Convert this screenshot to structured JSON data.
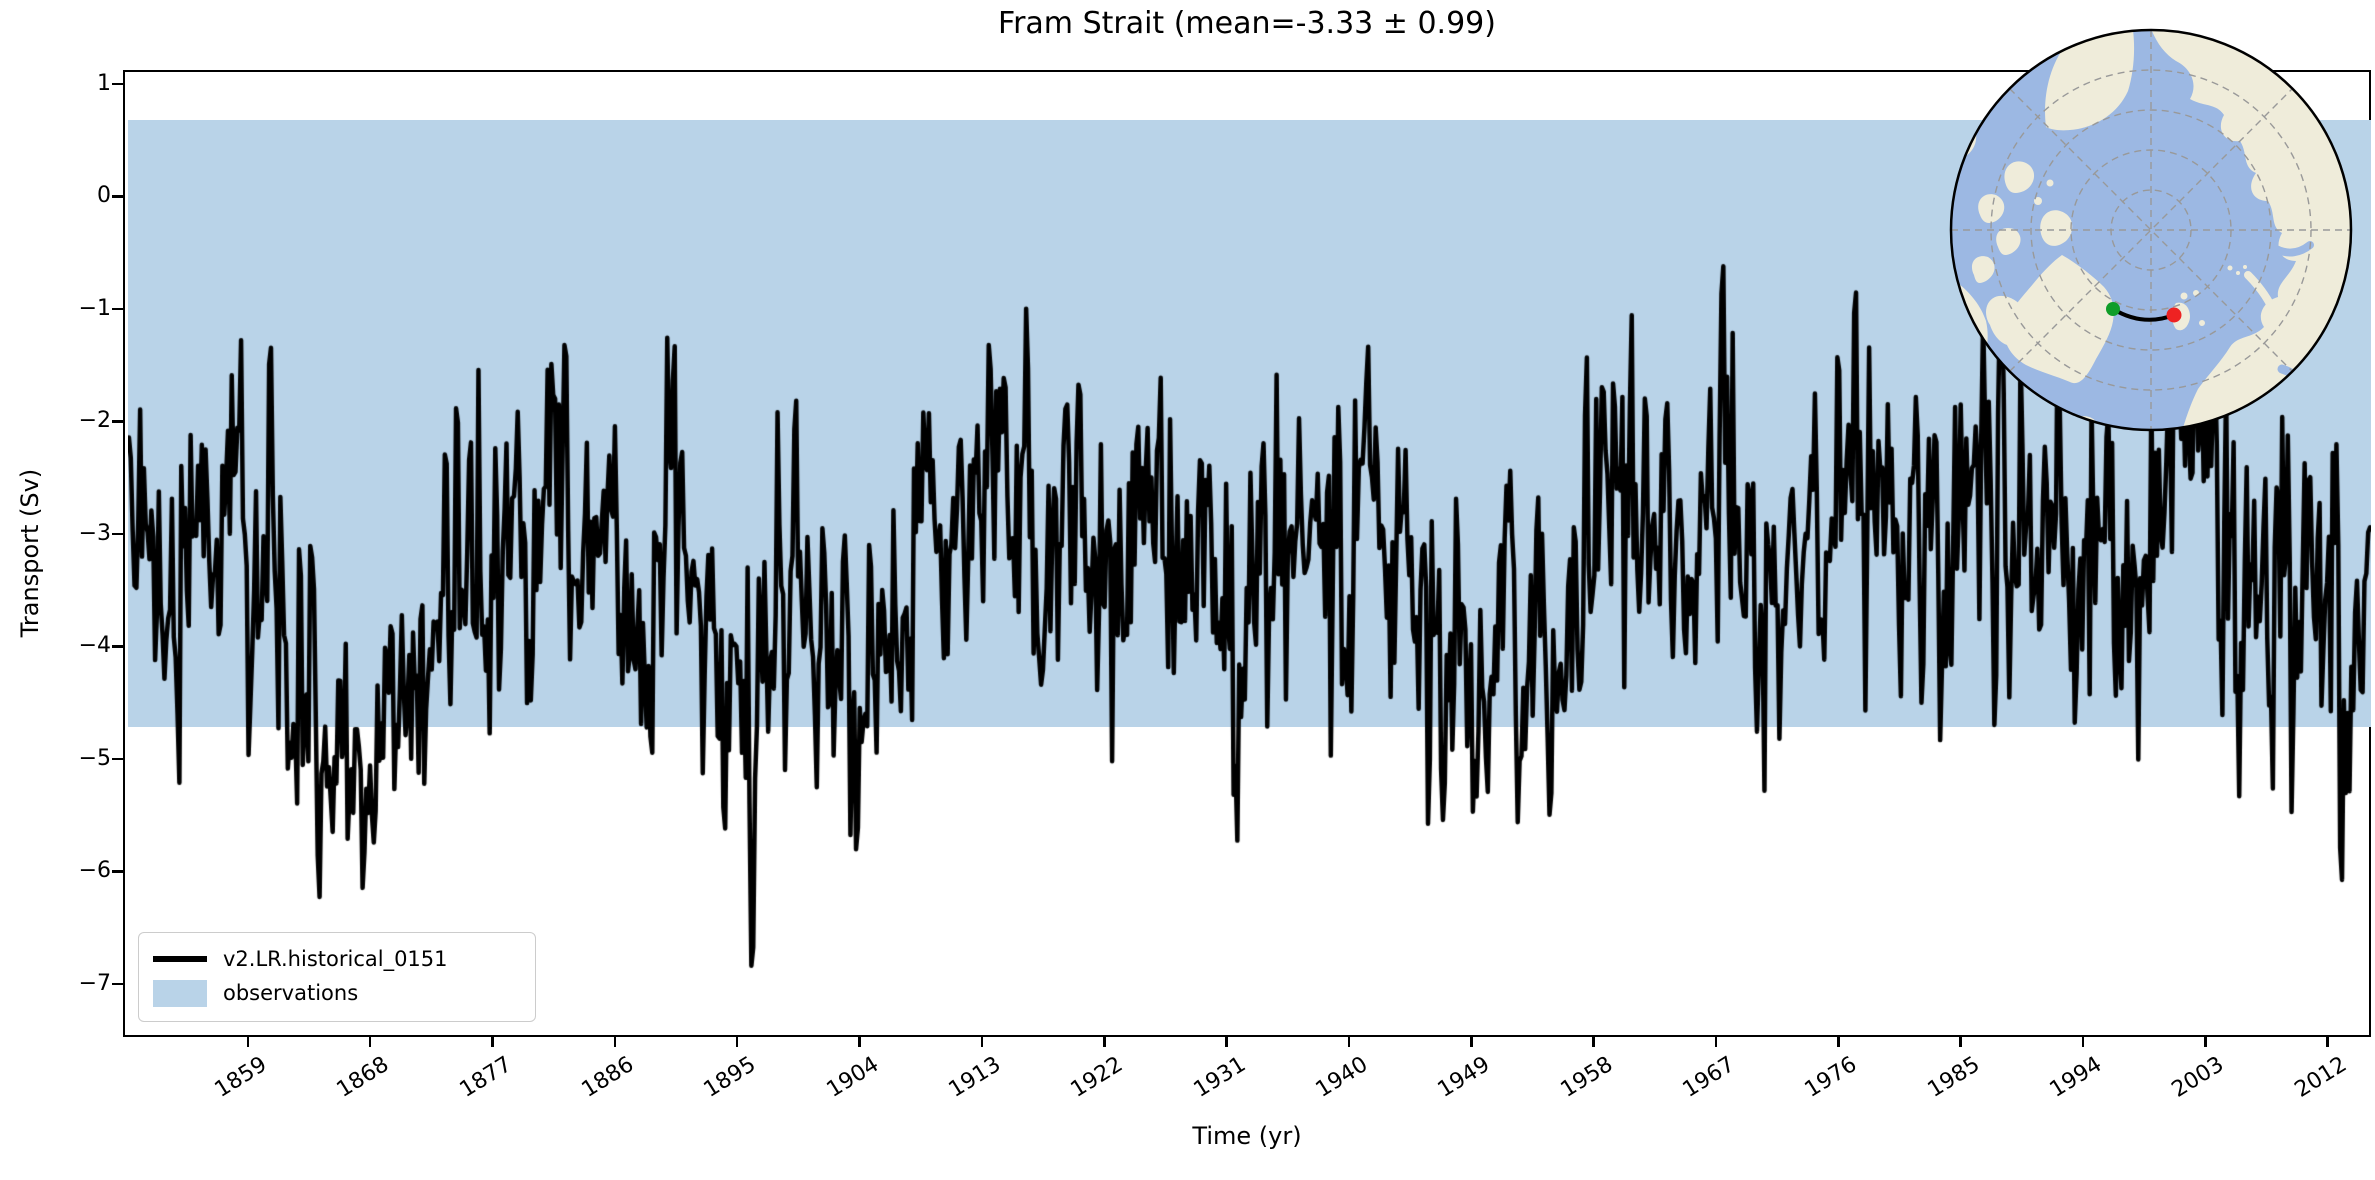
{
  "figure": {
    "background": "#ffffff"
  },
  "chart_data": {
    "type": "line",
    "title": "Fram Strait (mean=-3.33 ± 0.99)",
    "xlabel": "Time (yr)",
    "ylabel": "Transport (Sv)",
    "xlim": [
      1850,
      2015
    ],
    "ylim": [
      -7.45,
      1.1
    ],
    "grid": false,
    "x_ticks": [
      1859,
      1868,
      1877,
      1886,
      1895,
      1904,
      1913,
      1922,
      1931,
      1940,
      1949,
      1958,
      1967,
      1976,
      1985,
      1994,
      2003,
      2012
    ],
    "x_tick_labels": [
      "1859",
      "1868",
      "1877",
      "1886",
      "1895",
      "1904",
      "1913",
      "1922",
      "1931",
      "1940",
      "1949",
      "1958",
      "1967",
      "1976",
      "1985",
      "1994",
      "2003",
      "2012"
    ],
    "y_ticks": [
      1,
      0,
      -1,
      -2,
      -3,
      -4,
      -5,
      -6,
      -7
    ],
    "y_tick_labels": [
      "1",
      "0",
      "−1",
      "−2",
      "−3",
      "−4",
      "−5",
      "−6",
      "−7"
    ],
    "legend_position": "lower left",
    "series": [
      {
        "name": "v2.LR.historical_0151",
        "color": "#000000",
        "linewidth": 4.5,
        "mean": -3.33,
        "std": 0.99,
        "approx_min": -7.1,
        "approx_max": -0.4,
        "synthesis": {
          "seed": 20151,
          "n_points": 1200,
          "ar1_phi": 0.35,
          "slow_phi": 0.97,
          "slow_amp": 0.25
        }
      }
    ],
    "observations_band": {
      "label": "observations",
      "y_min": -4.7,
      "y_max": 0.7,
      "color": "#b9d3e8"
    }
  },
  "legend": {
    "entries": [
      {
        "label": "v2.LR.historical_0151",
        "swatch": "line",
        "color": "#000000"
      },
      {
        "label": "observations",
        "swatch": "patch",
        "color": "#b9d3e8"
      }
    ]
  },
  "inset_map": {
    "type": "north-polar-map",
    "region": "Arctic Ocean with Fram Strait transect",
    "ocean_color": "#9cb8e3",
    "land_color": "#efecda",
    "graticule_color": "#999999",
    "transect": {
      "line_color": "#000000",
      "start_marker_color": "#0f9d28",
      "end_marker_color": "#ee2222"
    }
  }
}
